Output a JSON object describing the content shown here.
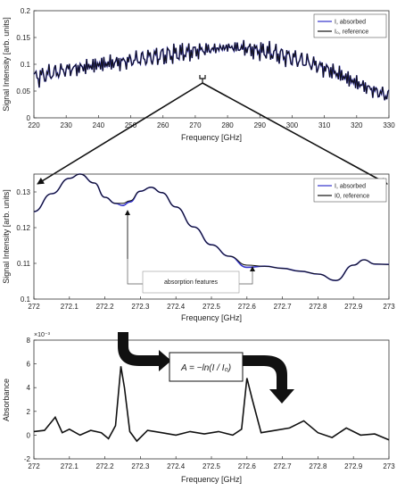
{
  "chart_data": [
    {
      "type": "line",
      "xlabel": "Frequency [GHz]",
      "ylabel": "Signal Intensity [arb. units]",
      "xlim": [
        220,
        330
      ],
      "ylim": [
        0,
        0.2
      ],
      "x_ticks": [
        "220",
        "230",
        "240",
        "250",
        "260",
        "270",
        "280",
        "290",
        "300",
        "310",
        "320",
        "330"
      ],
      "y_ticks": [
        "0",
        "0.05",
        "0.1",
        "0.15",
        "0.2"
      ],
      "grid": false,
      "legend_position": "top-right",
      "series": [
        {
          "name": "I, absorbed",
          "color": "#3333cc",
          "x": [
            220,
            225,
            230,
            235,
            240,
            245,
            250,
            255,
            260,
            265,
            270,
            275,
            280,
            285,
            290,
            295,
            300,
            305,
            310,
            315,
            320,
            325,
            330
          ],
          "y": [
            0.075,
            0.082,
            0.09,
            0.094,
            0.099,
            0.103,
            0.107,
            0.112,
            0.117,
            0.12,
            0.125,
            0.128,
            0.132,
            0.13,
            0.125,
            0.12,
            0.112,
            0.103,
            0.093,
            0.08,
            0.065,
            0.052,
            0.04
          ]
        },
        {
          "name": "I₀, reference",
          "color": "#111111",
          "x": [
            220,
            225,
            230,
            235,
            240,
            245,
            250,
            255,
            260,
            265,
            270,
            275,
            280,
            285,
            290,
            295,
            300,
            305,
            310,
            315,
            320,
            325,
            330
          ],
          "y": [
            0.075,
            0.082,
            0.09,
            0.094,
            0.099,
            0.103,
            0.107,
            0.112,
            0.117,
            0.12,
            0.125,
            0.128,
            0.132,
            0.13,
            0.125,
            0.12,
            0.112,
            0.103,
            0.093,
            0.08,
            0.065,
            0.052,
            0.04
          ]
        }
      ]
    },
    {
      "type": "line",
      "xlabel": "Frequency [GHz]",
      "ylabel": "Signal Intensity [arb. units]",
      "xlim": [
        272,
        273
      ],
      "ylim": [
        0.1,
        0.135
      ],
      "x_ticks": [
        "272",
        "272.1",
        "272.2",
        "272.3",
        "272.4",
        "272.5",
        "272.6",
        "272.7",
        "272.8",
        "272.9",
        "273"
      ],
      "y_ticks": [
        "0.1",
        "0.11",
        "0.12",
        "0.13"
      ],
      "grid": false,
      "legend_position": "top-right",
      "annotation": "absorption features",
      "series": [
        {
          "name": "I, absorbed",
          "color": "#3333cc",
          "x": [
            272.0,
            272.05,
            272.1,
            272.13,
            272.17,
            272.2,
            272.23,
            272.25,
            272.27,
            272.3,
            272.33,
            272.36,
            272.4,
            272.45,
            272.5,
            272.55,
            272.6,
            272.65,
            272.7,
            272.75,
            272.8,
            272.85,
            272.9,
            272.93,
            272.96,
            273.0
          ],
          "y": [
            0.1245,
            0.1295,
            0.1338,
            0.135,
            0.1325,
            0.1285,
            0.1268,
            0.1262,
            0.1272,
            0.1302,
            0.1313,
            0.1298,
            0.1258,
            0.1202,
            0.1152,
            0.112,
            0.1089,
            0.1092,
            0.1086,
            0.1078,
            0.107,
            0.1052,
            0.1095,
            0.111,
            0.1098,
            0.1097
          ]
        },
        {
          "name": "I0, reference",
          "color": "#111111",
          "x": [
            272.0,
            272.05,
            272.1,
            272.13,
            272.17,
            272.2,
            272.23,
            272.25,
            272.27,
            272.3,
            272.33,
            272.36,
            272.4,
            272.45,
            272.5,
            272.55,
            272.6,
            272.65,
            272.7,
            272.75,
            272.8,
            272.85,
            272.9,
            272.93,
            272.96,
            273.0
          ],
          "y": [
            0.1245,
            0.1295,
            0.1338,
            0.135,
            0.1325,
            0.1285,
            0.1268,
            0.1268,
            0.1275,
            0.1302,
            0.1313,
            0.1298,
            0.1258,
            0.1202,
            0.1152,
            0.112,
            0.1095,
            0.1092,
            0.1086,
            0.1078,
            0.107,
            0.1052,
            0.1095,
            0.111,
            0.1098,
            0.1097
          ]
        }
      ]
    },
    {
      "type": "line",
      "xlabel": "Frequency [GHz]",
      "ylabel": "Absorbance",
      "y_multiplier": "×10⁻³",
      "xlim": [
        272,
        273
      ],
      "ylim": [
        -2,
        8
      ],
      "x_ticks": [
        "272",
        "272.1",
        "272.2",
        "272.3",
        "272.4",
        "272.5",
        "272.6",
        "272.7",
        "272.8",
        "272.9",
        "273"
      ],
      "y_ticks": [
        "-2",
        "0",
        "2",
        "4",
        "6",
        "8"
      ],
      "grid": false,
      "equation": "A = −ln(I / I₀)",
      "series": [
        {
          "name": "",
          "color": "#111111",
          "x": [
            272.0,
            272.03,
            272.06,
            272.08,
            272.1,
            272.13,
            272.16,
            272.19,
            272.21,
            272.23,
            272.245,
            272.255,
            272.27,
            272.29,
            272.32,
            272.36,
            272.4,
            272.44,
            272.48,
            272.52,
            272.56,
            272.585,
            272.6,
            272.615,
            272.64,
            272.68,
            272.72,
            272.76,
            272.8,
            272.84,
            272.88,
            272.92,
            272.96,
            273.0
          ],
          "y": [
            0.3,
            0.4,
            1.5,
            0.2,
            0.5,
            0.0,
            0.4,
            0.2,
            -0.3,
            0.8,
            5.8,
            4.0,
            0.3,
            -0.5,
            0.4,
            0.2,
            0.0,
            0.3,
            0.1,
            0.3,
            0.0,
            0.5,
            4.8,
            3.0,
            0.2,
            0.4,
            0.6,
            1.2,
            0.2,
            -0.2,
            0.6,
            0.0,
            0.1,
            -0.4
          ]
        }
      ]
    }
  ]
}
